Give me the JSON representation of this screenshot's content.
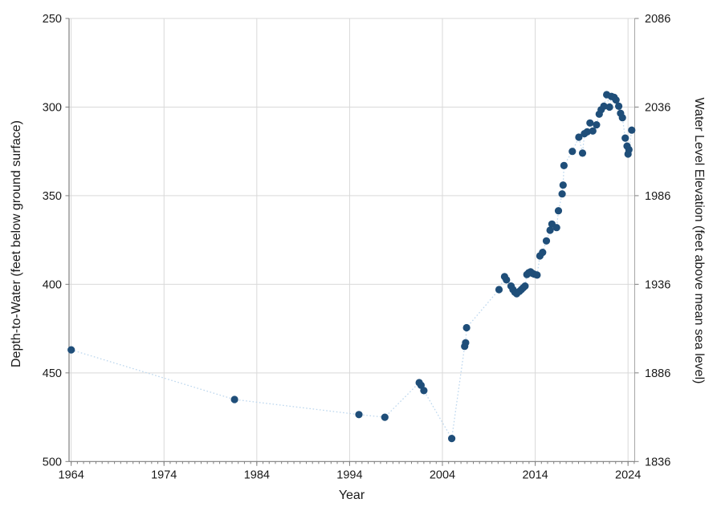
{
  "chart_data": {
    "type": "scatter",
    "title": "",
    "xlabel": "Year",
    "ylabel_left": "Depth-to-Water (feet below ground surface)",
    "ylabel_right": "Water Level Elevation (feet above mean sea level)",
    "x_ticks": [
      1964,
      1974,
      1984,
      1994,
      2004,
      2014,
      2024
    ],
    "x_minor_ticks_per_decade": 15,
    "xlim": [
      1963.77,
      2024.72
    ],
    "y_left_ticks": [
      250,
      300,
      350,
      400,
      450,
      500
    ],
    "y_right_ticks": [
      2086,
      2036,
      1986,
      1936,
      1886,
      1836
    ],
    "y_left_lim": [
      250,
      500
    ],
    "y_left_inverted": true,
    "grid": true,
    "legend": "none",
    "colors": {
      "marker": "#1F4E79",
      "connector": "#BDD7EE",
      "gridline": "#D9D9D9",
      "axis_line": "#7F7F7F",
      "right_border": "#A6A6A6",
      "label": "#1a1a1a"
    },
    "marker_radius_px": 4.6,
    "connector_style": "dotted",
    "points": [
      [
        1964.0,
        437.0
      ],
      [
        1981.6,
        465.0
      ],
      [
        1995.0,
        473.5
      ],
      [
        1997.8,
        475.0
      ],
      [
        2001.5,
        455.5
      ],
      [
        2001.7,
        457.0
      ],
      [
        2002.0,
        460.0
      ],
      [
        2005.0,
        487.0
      ],
      [
        2006.4,
        435.0
      ],
      [
        2006.5,
        433.0
      ],
      [
        2006.6,
        424.5
      ],
      [
        2010.1,
        403.0
      ],
      [
        2010.7,
        395.7
      ],
      [
        2010.9,
        397.5
      ],
      [
        2011.4,
        401.0
      ],
      [
        2011.6,
        403.0
      ],
      [
        2011.8,
        404.5
      ],
      [
        2012.0,
        405.3
      ],
      [
        2012.3,
        404.0
      ],
      [
        2012.5,
        403.0
      ],
      [
        2012.7,
        402.0
      ],
      [
        2012.9,
        401.0
      ],
      [
        2013.1,
        394.5
      ],
      [
        2013.3,
        393.5
      ],
      [
        2013.5,
        393.0
      ],
      [
        2013.7,
        393.8
      ],
      [
        2013.9,
        394.3
      ],
      [
        2014.2,
        394.8
      ],
      [
        2014.5,
        384.0
      ],
      [
        2014.8,
        382.0
      ],
      [
        2015.2,
        375.5
      ],
      [
        2015.6,
        369.5
      ],
      [
        2015.8,
        366.0
      ],
      [
        2016.3,
        368.0
      ],
      [
        2016.5,
        358.5
      ],
      [
        2016.9,
        349.0
      ],
      [
        2017.0,
        344.0
      ],
      [
        2017.1,
        333.0
      ],
      [
        2018.0,
        325.0
      ],
      [
        2018.7,
        317.0
      ],
      [
        2019.1,
        326.0
      ],
      [
        2019.3,
        315.0
      ],
      [
        2019.6,
        314.0
      ],
      [
        2019.9,
        309.0
      ],
      [
        2020.2,
        313.5
      ],
      [
        2020.6,
        310.0
      ],
      [
        2020.9,
        304.0
      ],
      [
        2021.1,
        301.5
      ],
      [
        2021.4,
        299.5
      ],
      [
        2021.7,
        293.0
      ],
      [
        2022.0,
        300.0
      ],
      [
        2022.2,
        294.0
      ],
      [
        2022.5,
        294.5
      ],
      [
        2022.7,
        296.0
      ],
      [
        2023.0,
        299.5
      ],
      [
        2023.2,
        303.5
      ],
      [
        2023.4,
        306.0
      ],
      [
        2023.7,
        317.5
      ],
      [
        2023.9,
        322.0
      ],
      [
        2024.0,
        326.5
      ],
      [
        2024.1,
        324.0
      ],
      [
        2024.4,
        313.0
      ]
    ]
  }
}
